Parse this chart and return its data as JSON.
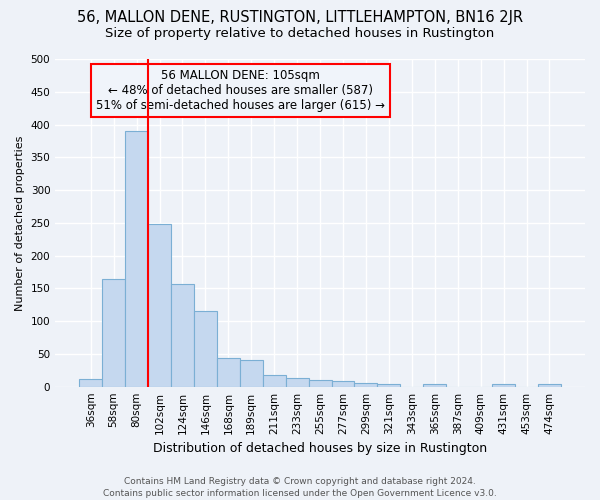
{
  "title": "56, MALLON DENE, RUSTINGTON, LITTLEHAMPTON, BN16 2JR",
  "subtitle": "Size of property relative to detached houses in Rustington",
  "xlabel": "Distribution of detached houses by size in Rustington",
  "ylabel": "Number of detached properties",
  "categories": [
    "36sqm",
    "58sqm",
    "80sqm",
    "102sqm",
    "124sqm",
    "146sqm",
    "168sqm",
    "189sqm",
    "211sqm",
    "233sqm",
    "255sqm",
    "277sqm",
    "299sqm",
    "321sqm",
    "343sqm",
    "365sqm",
    "387sqm",
    "409sqm",
    "431sqm",
    "453sqm",
    "474sqm"
  ],
  "values": [
    12,
    165,
    390,
    248,
    157,
    115,
    44,
    40,
    18,
    14,
    10,
    9,
    6,
    4,
    0,
    4,
    0,
    0,
    4,
    0,
    4
  ],
  "bar_color": "#c5d8ef",
  "bar_edge_color": "#7bafd4",
  "vline_index": 3,
  "vline_color": "red",
  "annotation_line1": "56 MALLON DENE: 105sqm",
  "annotation_line2": "← 48% of detached houses are smaller (587)",
  "annotation_line3": "51% of semi-detached houses are larger (615) →",
  "annotation_box_edge_color": "red",
  "annotation_box_face_color": "#f0f4fa",
  "ylim": [
    0,
    500
  ],
  "yticks": [
    0,
    50,
    100,
    150,
    200,
    250,
    300,
    350,
    400,
    450,
    500
  ],
  "footer_line1": "Contains HM Land Registry data © Crown copyright and database right 2024.",
  "footer_line2": "Contains public sector information licensed under the Open Government Licence v3.0.",
  "bg_color": "#eef2f8",
  "grid_color": "#ffffff",
  "title_fontsize": 10.5,
  "subtitle_fontsize": 9.5,
  "ylabel_fontsize": 8,
  "xlabel_fontsize": 9,
  "tick_fontsize": 7.5,
  "annotation_fontsize": 8.5,
  "footer_fontsize": 6.5
}
